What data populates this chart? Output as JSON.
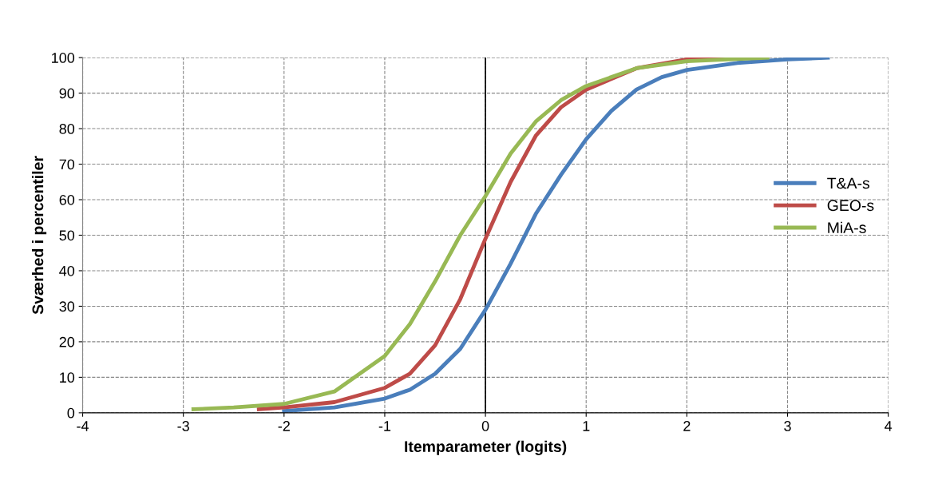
{
  "chart_data": {
    "type": "line",
    "xlabel": "Itemparameter (logits)",
    "ylabel": "Sværhed i percentiler",
    "xlim": [
      -4,
      4
    ],
    "xticks": [
      -4,
      -3,
      -2,
      -1,
      0,
      1,
      2,
      3,
      4
    ],
    "ylim": [
      0,
      100
    ],
    "yticks": [
      0,
      10,
      20,
      30,
      40,
      50,
      60,
      70,
      80,
      90,
      100
    ],
    "grid": true,
    "legend": "right",
    "marker": "none",
    "line_style": "solid",
    "ref_lines": [
      {
        "axis": "x",
        "value": 0,
        "color": "#000000"
      }
    ],
    "series": [
      {
        "name": "T&A-s",
        "color": "#4a7ebb",
        "x": [
          -2.0,
          -1.5,
          -1.0,
          -0.75,
          -0.5,
          -0.25,
          0,
          0.25,
          0.5,
          0.75,
          1.0,
          1.25,
          1.5,
          1.75,
          2.0,
          2.5,
          3.0,
          3.4
        ],
        "values": [
          0.5,
          1.5,
          4,
          6.5,
          11,
          18,
          29,
          42,
          56,
          67,
          77,
          85,
          91,
          94.5,
          96.5,
          98.5,
          99.5,
          100
        ]
      },
      {
        "name": "GEO-s",
        "color": "#be4b48",
        "x": [
          -2.25,
          -2.0,
          -1.5,
          -1.0,
          -0.75,
          -0.5,
          -0.25,
          0,
          0.25,
          0.5,
          0.75,
          1.0,
          1.5,
          2.0,
          2.6
        ],
        "values": [
          1,
          1.5,
          3,
          7,
          11,
          19,
          32,
          49,
          65,
          78,
          86,
          91,
          97,
          99.5,
          100
        ]
      },
      {
        "name": "MiA-s",
        "color": "#98b954",
        "x": [
          -2.9,
          -2.5,
          -2.0,
          -1.5,
          -1.0,
          -0.75,
          -0.5,
          -0.25,
          0,
          0.25,
          0.5,
          0.75,
          1.0,
          1.5,
          2.0,
          2.8
        ],
        "values": [
          1,
          1.5,
          2.5,
          6,
          16,
          25,
          37,
          50,
          61,
          73,
          82,
          88,
          92,
          97,
          99,
          100
        ]
      }
    ]
  }
}
